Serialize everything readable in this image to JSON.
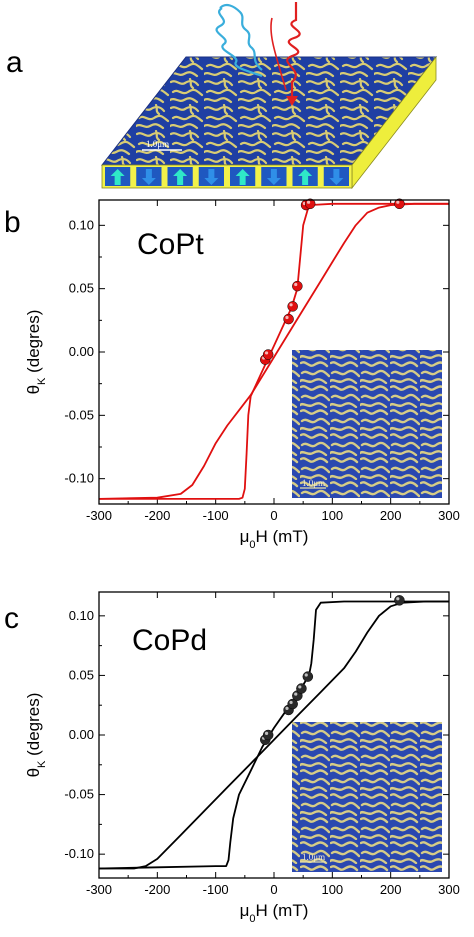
{
  "panel_labels": {
    "a": "a",
    "b": "b",
    "c": "c"
  },
  "illustration": {
    "scale_bar_text": "1.0μm",
    "domain_arrows": [
      "up",
      "down",
      "up",
      "down",
      "up",
      "down",
      "up",
      "down"
    ],
    "colors": {
      "surface_blue": "#1f3fa3",
      "surface_yellow": "#d8cc74",
      "side_face": "#f2f24a",
      "up_arrow": "#2fe8c8",
      "down_arrow": "#2f8fe8",
      "incident_beam": "#3aaedc",
      "reflected_beam": "#e02020"
    }
  },
  "chart_data": [
    {
      "type": "line",
      "panel": "b",
      "sample": "CoPt",
      "xlabel": "μ0H (mT)",
      "ylabel": "θK (degres)",
      "xlim": [
        -300,
        300
      ],
      "ylim": [
        -0.12,
        0.12
      ],
      "xticks": [
        -300,
        -200,
        -100,
        0,
        100,
        200,
        300
      ],
      "yticks": [
        0.1,
        0.05,
        0.0,
        -0.05,
        -0.1
      ],
      "ytick_labels": [
        "0.10",
        "0.05",
        "0.00",
        "-0.05",
        "-0.10"
      ],
      "line_color": "#e01010",
      "series": [
        {
          "x": [
            -300,
            -200,
            -160,
            -140,
            -120,
            -100,
            -80,
            -60,
            -40,
            0,
            40,
            80,
            100,
            120,
            140,
            160,
            180,
            200,
            240,
            300
          ],
          "y": [
            -0.116,
            -0.115,
            -0.112,
            -0.105,
            -0.09,
            -0.072,
            -0.058,
            -0.046,
            -0.034,
            -0.004,
            0.026,
            0.056,
            0.071,
            0.086,
            0.1,
            0.11,
            0.114,
            0.116,
            0.117,
            0.117
          ]
        },
        {
          "x": [
            300,
            200,
            100,
            60,
            50,
            40,
            30,
            20,
            0,
            -20,
            -40,
            -44,
            -47,
            -50,
            -54,
            -60,
            -100,
            -200,
            -300
          ],
          "y": [
            0.117,
            0.117,
            0.117,
            0.116,
            0.1,
            0.05,
            0.035,
            0.025,
            0.005,
            -0.015,
            -0.035,
            -0.05,
            -0.08,
            -0.108,
            -0.115,
            -0.116,
            -0.116,
            -0.116,
            -0.116
          ]
        }
      ],
      "markers": [
        {
          "x": -15,
          "y": -0.006
        },
        {
          "x": -10,
          "y": -0.002
        },
        {
          "x": 25,
          "y": 0.026
        },
        {
          "x": 32,
          "y": 0.036
        },
        {
          "x": 40,
          "y": 0.052
        },
        {
          "x": 55,
          "y": 0.116
        },
        {
          "x": 62,
          "y": 0.117
        },
        {
          "x": 215,
          "y": 0.117
        }
      ],
      "marker_color": "#e01010",
      "inset": {
        "scale_bar_text": "1.0μm"
      }
    },
    {
      "type": "line",
      "panel": "c",
      "sample": "CoPd",
      "xlabel": "μ0H (mT)",
      "ylabel": "θK (degres)",
      "xlim": [
        -300,
        300
      ],
      "ylim": [
        -0.12,
        0.12
      ],
      "xticks": [
        -300,
        -200,
        -100,
        0,
        100,
        200,
        300
      ],
      "yticks": [
        0.1,
        0.05,
        0.0,
        -0.05,
        -0.1
      ],
      "ytick_labels": [
        "0.10",
        "0.05",
        "0.00",
        "-0.05",
        "-0.10"
      ],
      "line_color": "#000000",
      "series": [
        {
          "x": [
            -300,
            -240,
            -220,
            -200,
            -180,
            -160,
            -120,
            -80,
            -40,
            0,
            40,
            80,
            120,
            140,
            160,
            180,
            200,
            220,
            260,
            300
          ],
          "y": [
            -0.112,
            -0.112,
            -0.11,
            -0.104,
            -0.094,
            -0.084,
            -0.064,
            -0.044,
            -0.024,
            -0.004,
            0.016,
            0.036,
            0.056,
            0.07,
            0.086,
            0.1,
            0.108,
            0.111,
            0.112,
            0.112
          ]
        },
        {
          "x": [
            300,
            200,
            120,
            80,
            72,
            68,
            64,
            60,
            40,
            20,
            0,
            -20,
            -40,
            -60,
            -70,
            -75,
            -78,
            -82,
            -100,
            -200,
            -300
          ],
          "y": [
            0.112,
            0.112,
            0.112,
            0.111,
            0.105,
            0.08,
            0.06,
            0.05,
            0.034,
            0.02,
            0.006,
            -0.01,
            -0.03,
            -0.05,
            -0.07,
            -0.09,
            -0.105,
            -0.11,
            -0.11,
            -0.111,
            -0.112
          ]
        }
      ],
      "markers": [
        {
          "x": -15,
          "y": -0.004
        },
        {
          "x": -10,
          "y": 0.0
        },
        {
          "x": 25,
          "y": 0.021
        },
        {
          "x": 32,
          "y": 0.026
        },
        {
          "x": 40,
          "y": 0.033
        },
        {
          "x": 47,
          "y": 0.039
        },
        {
          "x": 58,
          "y": 0.049
        },
        {
          "x": 215,
          "y": 0.113
        }
      ],
      "marker_color": "#2a2a2a",
      "inset": {
        "scale_bar_text": "1.0μm"
      }
    }
  ]
}
